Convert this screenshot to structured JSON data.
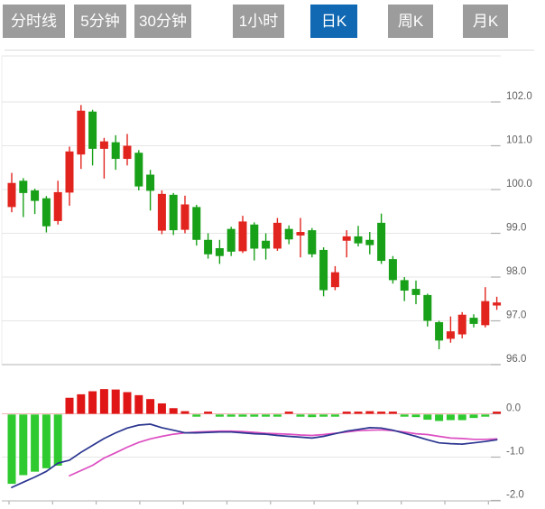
{
  "tab_bar": {
    "items": [
      {
        "label": "分时线",
        "active": false
      },
      {
        "label": "5分钟",
        "active": false
      },
      {
        "label": "30分钟",
        "active": false
      },
      {
        "label": "1小时",
        "active": false
      },
      {
        "label": "日K",
        "active": true
      },
      {
        "label": "周K",
        "active": false
      },
      {
        "label": "月K",
        "active": false
      }
    ]
  },
  "colors": {
    "candle_up": "#e2241e",
    "candle_down": "#18a018",
    "macd_up": "#e01616",
    "macd_down": "#2fca2f",
    "dif_line": "#2b3690",
    "dea_line": "#dd4ec2",
    "tab_bg": "#9c9c9c",
    "tab_active_bg": "#1169b4",
    "tab_text": "#ffffff",
    "grid": "#e6e6e6",
    "axis": "#c2c2c2",
    "tick": "#b0b0b0",
    "label": "#606060",
    "zero_line": "#f2b4b4"
  },
  "chart_data": {
    "type": "candlestick",
    "title": "",
    "legend_position": "none",
    "grid": true,
    "panels": [
      "price-kline",
      "macd-indicator"
    ],
    "price_axis": {
      "side": "right",
      "ticks": [
        102.0,
        101.0,
        100.0,
        99.0,
        98.0,
        97.0,
        96.0
      ],
      "labels": [
        "102.0",
        "101.0",
        "100.0",
        "99.0",
        "98.0",
        "97.0",
        "96.0"
      ],
      "ylim": [
        96.0,
        103.05
      ]
    },
    "candles": {
      "count": 43,
      "open": [
        99.6,
        100.2,
        99.98,
        99.8,
        99.28,
        99.93,
        100.8,
        101.78,
        100.93,
        101.08,
        100.7,
        100.84,
        100.34,
        99.06,
        99.88,
        99.08,
        99.6,
        98.85,
        98.66,
        99.1,
        98.59,
        99.2,
        98.83,
        98.65,
        99.1,
        98.95,
        99.07,
        98.62,
        97.77,
        98.83,
        98.93,
        98.85,
        99.24,
        98.41,
        97.93,
        97.73,
        97.59,
        96.97,
        96.59,
        96.69,
        97.07,
        96.9,
        97.35
      ],
      "close": [
        100.15,
        99.92,
        99.74,
        99.16,
        99.94,
        100.87,
        101.8,
        100.93,
        101.1,
        100.7,
        101.0,
        100.07,
        99.97,
        99.9,
        99.07,
        99.66,
        98.85,
        98.52,
        98.48,
        98.58,
        99.27,
        98.65,
        98.65,
        99.24,
        98.86,
        99.03,
        98.52,
        97.7,
        98.11,
        98.93,
        98.77,
        98.73,
        98.37,
        97.93,
        97.69,
        97.59,
        97.0,
        96.55,
        96.76,
        97.14,
        96.93,
        97.45,
        97.42
      ],
      "high": [
        100.38,
        100.26,
        100.02,
        99.85,
        100.2,
        100.98,
        101.93,
        101.82,
        101.18,
        101.24,
        101.27,
        100.9,
        100.45,
        99.98,
        99.92,
        99.86,
        99.65,
        99.0,
        98.85,
        99.15,
        99.4,
        99.25,
        99.0,
        99.35,
        99.18,
        99.35,
        99.12,
        98.68,
        98.25,
        99.07,
        99.17,
        99.03,
        99.45,
        98.48,
        98.0,
        97.92,
        97.62,
        97.0,
        97.1,
        97.2,
        97.15,
        97.77,
        97.55
      ],
      "low": [
        99.48,
        99.37,
        99.44,
        99.02,
        99.2,
        99.63,
        100.47,
        100.55,
        100.25,
        100.45,
        100.55,
        99.98,
        99.52,
        98.98,
        98.96,
        99.0,
        98.72,
        98.42,
        98.3,
        98.48,
        98.55,
        98.38,
        98.4,
        98.6,
        98.75,
        98.45,
        98.45,
        97.56,
        97.7,
        98.45,
        98.7,
        98.52,
        98.3,
        97.85,
        97.45,
        97.38,
        96.87,
        96.35,
        96.5,
        96.6,
        96.85,
        96.85,
        97.25
      ],
      "up_color_meaning": "rise (red)",
      "down_color_meaning": "fall (green)"
    },
    "macd": {
      "axis_ticks": [
        0.0,
        -1.0,
        -2.0
      ],
      "axis_labels": [
        "0.0",
        "-1.0",
        "-2.0"
      ],
      "ylim": [
        -2.1,
        0.25
      ],
      "histogram": [
        -1.6,
        -1.4,
        -1.32,
        -1.24,
        -1.18,
        0.37,
        0.45,
        0.52,
        0.57,
        0.56,
        0.5,
        0.43,
        0.34,
        0.24,
        0.13,
        0.06,
        -0.03,
        0.02,
        -0.03,
        -0.03,
        -0.04,
        -0.03,
        -0.03,
        -0.04,
        0.02,
        -0.05,
        -0.06,
        -0.04,
        -0.02,
        0.02,
        0.03,
        0.06,
        0.04,
        0.01,
        -0.03,
        -0.06,
        -0.12,
        -0.15,
        -0.13,
        -0.13,
        -0.08,
        -0.05,
        0.03
      ],
      "dif": [
        -1.7,
        -1.58,
        -1.46,
        -1.33,
        -1.14,
        -1.07,
        -0.89,
        -0.73,
        -0.57,
        -0.44,
        -0.33,
        -0.26,
        -0.24,
        -0.32,
        -0.38,
        -0.44,
        -0.44,
        -0.43,
        -0.42,
        -0.42,
        -0.44,
        -0.46,
        -0.47,
        -0.5,
        -0.52,
        -0.54,
        -0.56,
        -0.52,
        -0.46,
        -0.4,
        -0.36,
        -0.32,
        -0.33,
        -0.38,
        -0.45,
        -0.52,
        -0.6,
        -0.67,
        -0.69,
        -0.7,
        -0.67,
        -0.64,
        -0.6
      ],
      "dea": [
        null,
        null,
        null,
        null,
        null,
        -1.43,
        -1.31,
        -1.19,
        -1.02,
        -0.9,
        -0.77,
        -0.66,
        -0.58,
        -0.52,
        -0.47,
        -0.44,
        -0.42,
        -0.41,
        -0.4,
        -0.4,
        -0.41,
        -0.43,
        -0.45,
        -0.46,
        -0.47,
        -0.49,
        -0.5,
        -0.48,
        -0.45,
        -0.42,
        -0.39,
        -0.38,
        -0.37,
        -0.39,
        -0.42,
        -0.46,
        -0.48,
        -0.52,
        -0.56,
        -0.57,
        -0.59,
        -0.59,
        -0.58
      ]
    },
    "x_axis": {
      "labels_visible": false,
      "tick_marks": true
    }
  }
}
